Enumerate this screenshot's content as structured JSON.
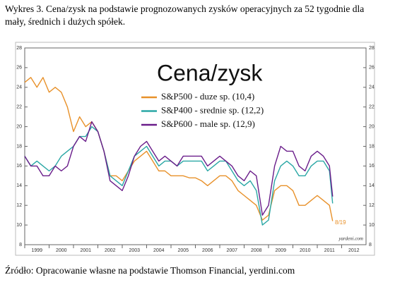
{
  "caption": "Wykres 3. Cena/zysk na podstawie prognozowanych zysków operacyjnych za 52 tygodnie dla mały, średnich i dużych spółek.",
  "source": "Źródło: Opracowanie własne na podstawie Thomson Financial, yerdini.com",
  "chart_data": {
    "type": "line",
    "title": "Cena/zysk",
    "annotations": [
      "8/19",
      "yardeni.com"
    ],
    "x": [
      1999.0,
      1999.25,
      1999.5,
      1999.75,
      2000.0,
      2000.25,
      2000.5,
      2000.75,
      2001.0,
      2001.25,
      2001.5,
      2001.75,
      2002.0,
      2002.25,
      2002.5,
      2002.75,
      2003.0,
      2003.25,
      2003.5,
      2003.75,
      2004.0,
      2004.25,
      2004.5,
      2004.75,
      2005.0,
      2005.25,
      2005.5,
      2005.75,
      2006.0,
      2006.25,
      2006.5,
      2006.75,
      2007.0,
      2007.25,
      2007.5,
      2007.75,
      2008.0,
      2008.25,
      2008.5,
      2008.75,
      2009.0,
      2009.25,
      2009.5,
      2009.75,
      2010.0,
      2010.25,
      2010.5,
      2010.75,
      2011.0,
      2011.25,
      2011.5,
      2011.63
    ],
    "series": [
      {
        "name": "S&P500 - duze sp. (10,4)",
        "color": "#e8912a",
        "values": [
          24.5,
          25,
          24,
          25,
          23.5,
          24,
          23.5,
          22,
          19.5,
          21,
          20,
          20.5,
          19.5,
          17.5,
          15,
          15,
          14.5,
          15.5,
          16.5,
          17,
          17.5,
          16.5,
          15.5,
          15.5,
          15,
          15,
          15,
          14.8,
          14.8,
          14.5,
          14,
          14.5,
          15,
          15,
          14.5,
          13.5,
          13,
          12.5,
          12,
          10.5,
          11,
          13.5,
          14,
          14,
          13.5,
          12,
          12,
          12.5,
          13,
          12.5,
          12,
          10.4
        ]
      },
      {
        "name": "S&P400 - srednie sp. (12,2)",
        "color": "#2aa7a5",
        "values": [
          17,
          16,
          16.5,
          16,
          15.5,
          16,
          17,
          17.5,
          18,
          19,
          19,
          20,
          19.5,
          17.5,
          15,
          14.5,
          14,
          15.5,
          17,
          17.5,
          18,
          17,
          16,
          16.5,
          16.5,
          16,
          16.5,
          16.5,
          16.5,
          16.5,
          15.5,
          16,
          16.5,
          16.5,
          15.5,
          14.5,
          14,
          14.5,
          13.5,
          10,
          10.5,
          14.5,
          16,
          16.5,
          16,
          15,
          15,
          16,
          16.5,
          16.5,
          15.5,
          12.2
        ]
      },
      {
        "name": "S&P600 - male sp. (12,9)",
        "color": "#6a1d8a",
        "values": [
          17,
          16,
          16,
          15,
          15,
          16,
          15.5,
          16,
          18,
          19,
          18.5,
          20.5,
          19.5,
          17.5,
          14.5,
          14,
          13.5,
          15,
          17,
          18,
          18.5,
          17.5,
          16.5,
          17,
          16.5,
          16,
          17,
          17,
          17,
          17,
          16,
          16.5,
          17,
          16.5,
          16,
          15,
          14.5,
          15.5,
          15,
          11,
          12,
          16,
          18,
          17.5,
          17.5,
          16,
          15.5,
          17,
          17.5,
          17,
          16,
          12.9
        ]
      }
    ],
    "xlim": [
      1999,
      2013
    ],
    "xticks": [
      1999,
      2000,
      2001,
      2002,
      2003,
      2004,
      2005,
      2006,
      2007,
      2008,
      2009,
      2010,
      2011,
      2012
    ],
    "ylim": [
      8,
      28
    ],
    "yticks": [
      8,
      10,
      12,
      14,
      16,
      18,
      20,
      22,
      24,
      26,
      28
    ],
    "y2lim": [
      8,
      28
    ],
    "y2ticks": [
      8,
      10,
      12,
      14,
      16,
      18,
      20,
      22,
      24,
      26,
      28
    ]
  }
}
